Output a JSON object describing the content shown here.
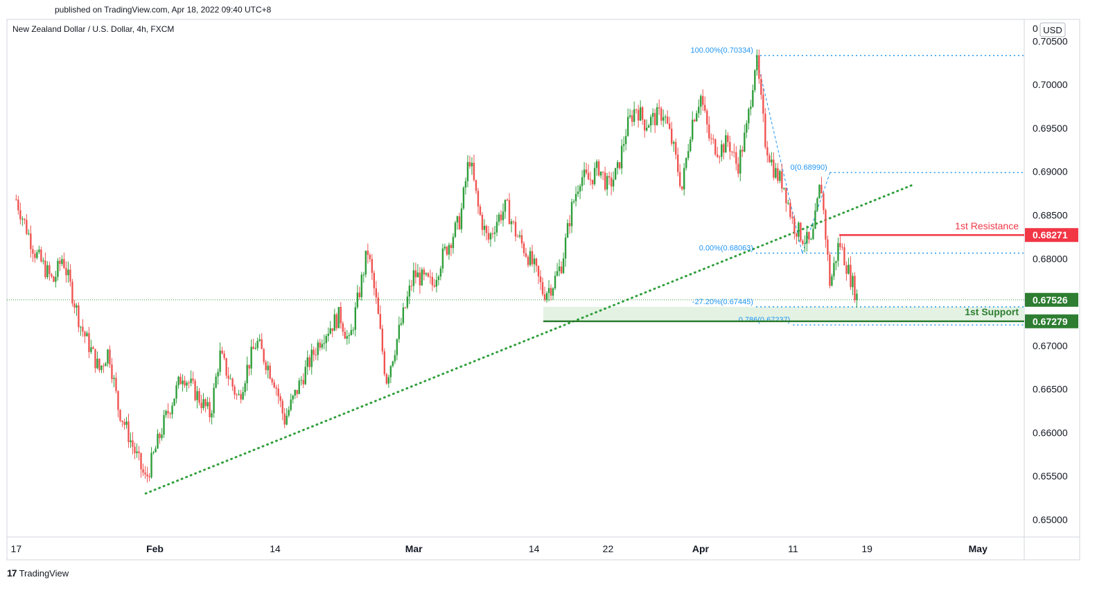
{
  "header": {
    "published": "published on TradingView.com, Apr 18, 2022 09:40 UTC+8"
  },
  "footer": {
    "logo_glyph": "17",
    "brand": "TradingView"
  },
  "chart_data": {
    "type": "candlestick",
    "title": "New Zealand Dollar / U.S. Dollar, 4h, FXCM",
    "currency": "USD",
    "y_axis_top_label": "0",
    "ylim": [
      0.648,
      0.7075
    ],
    "y_ticks": [
      {
        "value": 0.705,
        "label": "0.70500"
      },
      {
        "value": 0.7,
        "label": "0.70000"
      },
      {
        "value": 0.695,
        "label": "0.69500"
      },
      {
        "value": 0.69,
        "label": "0.69000"
      },
      {
        "value": 0.685,
        "label": "0.68500"
      },
      {
        "value": 0.68,
        "label": "0.68000"
      },
      {
        "value": 0.675,
        "label": "0.67500"
      },
      {
        "value": 0.67,
        "label": "0.67000"
      },
      {
        "value": 0.665,
        "label": "0.66500"
      },
      {
        "value": 0.66,
        "label": "0.66000"
      },
      {
        "value": 0.655,
        "label": "0.65500"
      },
      {
        "value": 0.65,
        "label": "0.65000"
      }
    ],
    "x_ticks": [
      {
        "date": "2022-01-17",
        "label": "17"
      },
      {
        "date": "2022-02-01",
        "label": "Feb"
      },
      {
        "date": "2022-02-14",
        "label": "14"
      },
      {
        "date": "2022-03-01",
        "label": "Mar"
      },
      {
        "date": "2022-03-14",
        "label": "14"
      },
      {
        "date": "2022-03-22",
        "label": "22"
      },
      {
        "date": "2022-04-01",
        "label": "Apr"
      },
      {
        "date": "2022-04-11",
        "label": "11"
      },
      {
        "date": "2022-04-19",
        "label": "19"
      },
      {
        "date": "2022-05-01",
        "label": "May"
      }
    ],
    "price_path": [
      {
        "date": "2022-01-17",
        "value": 0.6868
      },
      {
        "date": "2022-01-19",
        "value": 0.6808
      },
      {
        "date": "2022-01-21",
        "value": 0.6773
      },
      {
        "date": "2022-01-22",
        "value": 0.6802
      },
      {
        "date": "2022-01-24",
        "value": 0.6722
      },
      {
        "date": "2022-01-26",
        "value": 0.6672
      },
      {
        "date": "2022-01-27",
        "value": 0.6695
      },
      {
        "date": "2022-01-28",
        "value": 0.663
      },
      {
        "date": "2022-01-31",
        "value": 0.6545
      },
      {
        "date": "2022-02-02",
        "value": 0.6612
      },
      {
        "date": "2022-02-04",
        "value": 0.6668
      },
      {
        "date": "2022-02-07",
        "value": 0.662
      },
      {
        "date": "2022-02-08",
        "value": 0.669
      },
      {
        "date": "2022-02-10",
        "value": 0.6638
      },
      {
        "date": "2022-02-11",
        "value": 0.6675
      },
      {
        "date": "2022-02-12",
        "value": 0.6705
      },
      {
        "date": "2022-02-14",
        "value": 0.6658
      },
      {
        "date": "2022-02-15",
        "value": 0.6614
      },
      {
        "date": "2022-02-17",
        "value": 0.6665
      },
      {
        "date": "2022-02-19",
        "value": 0.671
      },
      {
        "date": "2022-02-21",
        "value": 0.6735
      },
      {
        "date": "2022-02-22",
        "value": 0.6702
      },
      {
        "date": "2022-02-24",
        "value": 0.681
      },
      {
        "date": "2022-02-25",
        "value": 0.6745
      },
      {
        "date": "2022-02-26",
        "value": 0.666
      },
      {
        "date": "2022-02-27",
        "value": 0.67
      },
      {
        "date": "2022-03-01",
        "value": 0.6782
      },
      {
        "date": "2022-03-03",
        "value": 0.677
      },
      {
        "date": "2022-03-04",
        "value": 0.68
      },
      {
        "date": "2022-03-06",
        "value": 0.6845
      },
      {
        "date": "2022-03-07",
        "value": 0.6918
      },
      {
        "date": "2022-03-08",
        "value": 0.6855
      },
      {
        "date": "2022-03-09",
        "value": 0.682
      },
      {
        "date": "2022-03-10",
        "value": 0.6845
      },
      {
        "date": "2022-03-11",
        "value": 0.686
      },
      {
        "date": "2022-03-12",
        "value": 0.683
      },
      {
        "date": "2022-03-13",
        "value": 0.681
      },
      {
        "date": "2022-03-14",
        "value": 0.679
      },
      {
        "date": "2022-03-15",
        "value": 0.676
      },
      {
        "date": "2022-03-16",
        "value": 0.677
      },
      {
        "date": "2022-03-17",
        "value": 0.6795
      },
      {
        "date": "2022-03-18",
        "value": 0.6855
      },
      {
        "date": "2022-03-19",
        "value": 0.6895
      },
      {
        "date": "2022-03-20",
        "value": 0.689
      },
      {
        "date": "2022-03-21",
        "value": 0.6905
      },
      {
        "date": "2022-03-22",
        "value": 0.6882
      },
      {
        "date": "2022-03-23",
        "value": 0.69
      },
      {
        "date": "2022-03-24",
        "value": 0.695
      },
      {
        "date": "2022-03-25",
        "value": 0.6975
      },
      {
        "date": "2022-03-26",
        "value": 0.6955
      },
      {
        "date": "2022-03-28",
        "value": 0.6968
      },
      {
        "date": "2022-03-29",
        "value": 0.693
      },
      {
        "date": "2022-03-30",
        "value": 0.688
      },
      {
        "date": "2022-03-31",
        "value": 0.6955
      },
      {
        "date": "2022-04-01",
        "value": 0.6988
      },
      {
        "date": "2022-04-02",
        "value": 0.6935
      },
      {
        "date": "2022-04-03",
        "value": 0.6925
      },
      {
        "date": "2022-04-04",
        "value": 0.6935
      },
      {
        "date": "2022-04-05",
        "value": 0.6905
      },
      {
        "date": "2022-04-06",
        "value": 0.695
      },
      {
        "date": "2022-04-07",
        "value": 0.7033
      },
      {
        "date": "2022-04-08",
        "value": 0.6935
      },
      {
        "date": "2022-04-09",
        "value": 0.69
      },
      {
        "date": "2022-04-10",
        "value": 0.6885
      },
      {
        "date": "2022-04-11",
        "value": 0.684
      },
      {
        "date": "2022-04-12",
        "value": 0.6825
      },
      {
        "date": "2022-04-13",
        "value": 0.6815
      },
      {
        "date": "2022-04-14",
        "value": 0.689
      },
      {
        "date": "2022-04-15",
        "value": 0.677
      },
      {
        "date": "2022-04-16",
        "value": 0.682
      },
      {
        "date": "2022-04-17",
        "value": 0.6785
      },
      {
        "date": "2022-04-18",
        "value": 0.6753
      }
    ],
    "current_price": {
      "value": 0.67526,
      "label": "0.67526"
    },
    "resistance": {
      "value": 0.68271,
      "label": "0.68271",
      "name": "1st Resistance",
      "color": "#f23645"
    },
    "support": {
      "value": 0.67279,
      "label": "0.67279",
      "name": "1st Support",
      "color": "#2e7d32"
    },
    "support_zone": {
      "from_date": "2022-03-15",
      "top": 0.67445,
      "bottom": 0.67279,
      "color": "#e3f2e3"
    },
    "trendline": {
      "start": {
        "date": "2022-01-31",
        "value": 0.653
      },
      "end": {
        "date": "2022-04-24",
        "value": 0.6885
      },
      "color": "#2e9e3a"
    },
    "fib_levels": [
      {
        "label": "100.00%(0.70334)",
        "value": 0.70334,
        "from_date": "2022-04-07"
      },
      {
        "label": "0(0.68990)",
        "value": 0.6899,
        "from_date": "2022-04-15"
      },
      {
        "label": "0.00%(0.68063)",
        "value": 0.68063,
        "from_date": "2022-04-07"
      },
      {
        "label": "-27.20%(0.67445)",
        "value": 0.67445,
        "from_date": "2022-04-07"
      },
      {
        "label": "0.786(0.67237)",
        "value": 0.67237,
        "from_date": "2022-04-11"
      }
    ],
    "colors": {
      "up": "#26a69a",
      "down": "#ef5350",
      "fib": "#2196f3",
      "axis_text": "#131722"
    }
  }
}
